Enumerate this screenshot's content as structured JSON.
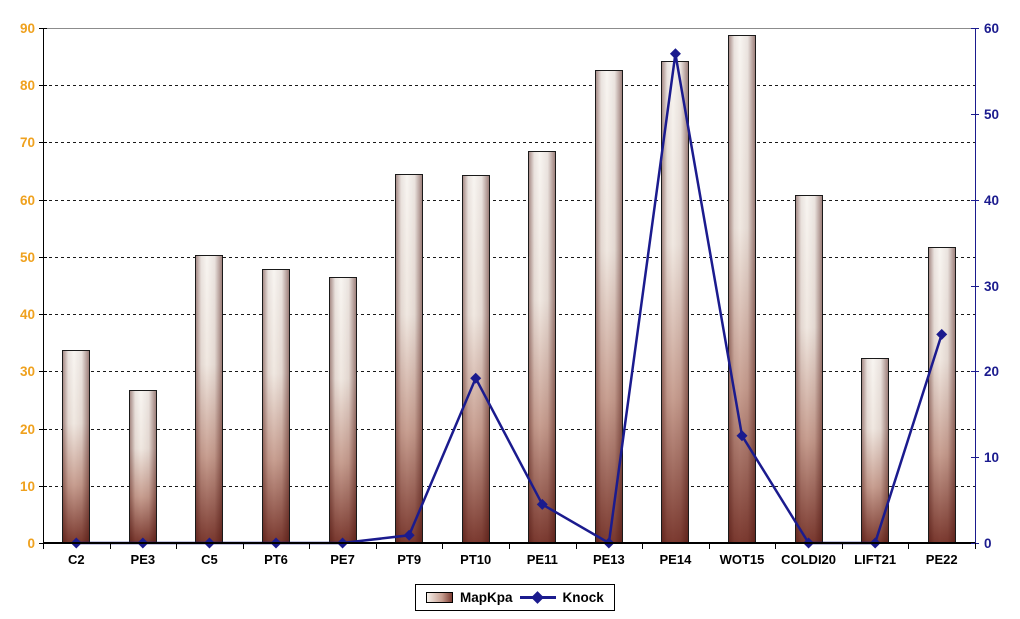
{
  "chart_data": {
    "type": "bar",
    "subtype": "combo-bar-line",
    "title": "",
    "xlabel": "",
    "ylabel": "",
    "categories": [
      "C2",
      "PE3",
      "C5",
      "PT6",
      "PE7",
      "PT9",
      "PT10",
      "PE11",
      "PE13",
      "PE14",
      "WOT15",
      "COLDI20",
      "LIFT21",
      "PE22"
    ],
    "series": [
      {
        "name": "MapKpa",
        "type": "bar",
        "axis": "left",
        "values": [
          33.8,
          26.8,
          50.3,
          47.9,
          46.5,
          64.5,
          64.3,
          68.5,
          82.7,
          84.3,
          88.7,
          60.9,
          32.3,
          51.7
        ]
      },
      {
        "name": "Knock",
        "type": "line",
        "axis": "right",
        "marker": "diamond",
        "values": [
          0,
          0,
          0,
          0,
          0,
          0.9,
          19.2,
          4.5,
          0,
          57,
          12.5,
          0,
          0,
          24.3
        ]
      }
    ],
    "left_axis": {
      "min": 0,
      "max": 90,
      "step": 10,
      "tick_labels": [
        "0",
        "10",
        "20",
        "30",
        "40",
        "50",
        "60",
        "70",
        "80",
        "90"
      ]
    },
    "right_axis": {
      "min": 0,
      "max": 60,
      "step": 10,
      "tick_labels": [
        "0",
        "10",
        "20",
        "30",
        "40",
        "50",
        "60"
      ]
    },
    "grid": "horizontal-dashed",
    "legend_position": "bottom-center"
  },
  "legend": {
    "mapkpa_label": "MapKpa",
    "knock_label": "Knock"
  },
  "colors": {
    "left_axis_label": "#EFA11E",
    "right_axis_label": "#1B1B8E",
    "line": "#1B1B8E",
    "bar_dark": "#7C3B31",
    "bar_light": "#F6F0EA",
    "axis_black": "#000000",
    "grid_dash": "#1A1A1A",
    "top_border": "#8C8C8C",
    "background": "#FFFFFF"
  }
}
